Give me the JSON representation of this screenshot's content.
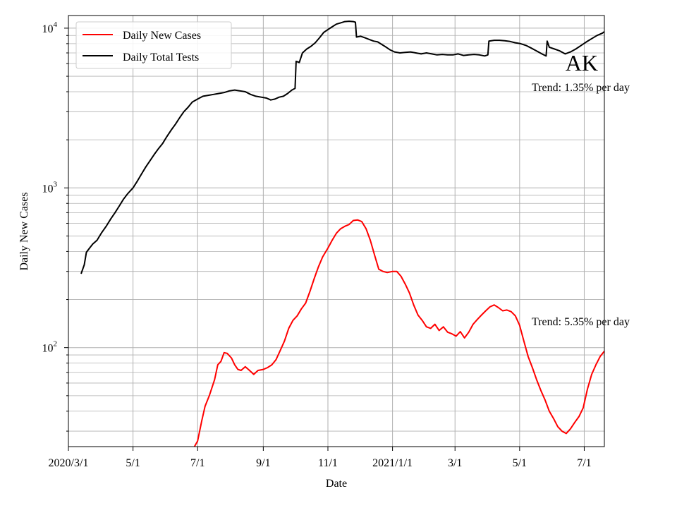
{
  "chart_data": {
    "type": "line",
    "title": "",
    "xlabel": "Date",
    "ylabel": "Daily New Cases",
    "state_label": "AK",
    "yscale": "log",
    "ylim": [
      24,
      12000
    ],
    "xlim": [
      "2020-03-01",
      "2021-07-20"
    ],
    "grid": "on (major and minor, both axes)",
    "legend_position": "upper-left",
    "x_ticks": [
      {
        "date": "2020-03-01",
        "label": "2020/3/1"
      },
      {
        "date": "2020-05-01",
        "label": "5/1"
      },
      {
        "date": "2020-07-01",
        "label": "7/1"
      },
      {
        "date": "2020-09-01",
        "label": "9/1"
      },
      {
        "date": "2020-11-01",
        "label": "11/1"
      },
      {
        "date": "2021-01-01",
        "label": "2021/1/1"
      },
      {
        "date": "2021-03-01",
        "label": "3/1"
      },
      {
        "date": "2021-05-01",
        "label": "5/1"
      },
      {
        "date": "2021-07-01",
        "label": "7/1"
      }
    ],
    "y_ticks": [
      {
        "value": 100,
        "base": "10",
        "exp": "2"
      },
      {
        "value": 1000,
        "base": "10",
        "exp": "3"
      },
      {
        "value": 10000,
        "base": "10",
        "exp": "4"
      }
    ],
    "annotations": [
      {
        "text": "Trend: 1.35% per day",
        "series": "Daily Total Tests"
      },
      {
        "text": "Trend: 5.35% per day",
        "series": "Daily New Cases"
      }
    ],
    "series": [
      {
        "name": "Daily New Cases",
        "color": "#ff0000",
        "points": [
          [
            "2020-06-28",
            24
          ],
          [
            "2020-07-01",
            26
          ],
          [
            "2020-07-05",
            35
          ],
          [
            "2020-07-08",
            43
          ],
          [
            "2020-07-12",
            50
          ],
          [
            "2020-07-17",
            63
          ],
          [
            "2020-07-20",
            78
          ],
          [
            "2020-07-23",
            82
          ],
          [
            "2020-07-26",
            93
          ],
          [
            "2020-07-29",
            92
          ],
          [
            "2020-08-02",
            86
          ],
          [
            "2020-08-05",
            78
          ],
          [
            "2020-08-08",
            73
          ],
          [
            "2020-08-11",
            72
          ],
          [
            "2020-08-15",
            76
          ],
          [
            "2020-08-19",
            72
          ],
          [
            "2020-08-23",
            68
          ],
          [
            "2020-08-27",
            72
          ],
          [
            "2020-09-01",
            73
          ],
          [
            "2020-09-05",
            75
          ],
          [
            "2020-09-09",
            78
          ],
          [
            "2020-09-13",
            84
          ],
          [
            "2020-09-17",
            96
          ],
          [
            "2020-09-21",
            110
          ],
          [
            "2020-09-25",
            132
          ],
          [
            "2020-09-29",
            148
          ],
          [
            "2020-10-03",
            158
          ],
          [
            "2020-10-07",
            175
          ],
          [
            "2020-10-11",
            190
          ],
          [
            "2020-10-15",
            225
          ],
          [
            "2020-10-19",
            270
          ],
          [
            "2020-10-23",
            320
          ],
          [
            "2020-10-27",
            370
          ],
          [
            "2020-11-01",
            420
          ],
          [
            "2020-11-05",
            470
          ],
          [
            "2020-11-09",
            520
          ],
          [
            "2020-11-13",
            555
          ],
          [
            "2020-11-17",
            575
          ],
          [
            "2020-11-21",
            590
          ],
          [
            "2020-11-25",
            625
          ],
          [
            "2020-11-29",
            630
          ],
          [
            "2020-12-03",
            615
          ],
          [
            "2020-12-07",
            555
          ],
          [
            "2020-12-11",
            470
          ],
          [
            "2020-12-15",
            380
          ],
          [
            "2020-12-19",
            310
          ],
          [
            "2020-12-23",
            300
          ],
          [
            "2020-12-27",
            295
          ],
          [
            "2021-01-01",
            300
          ],
          [
            "2021-01-05",
            300
          ],
          [
            "2021-01-09",
            280
          ],
          [
            "2021-01-13",
            250
          ],
          [
            "2021-01-17",
            220
          ],
          [
            "2021-01-21",
            185
          ],
          [
            "2021-01-25",
            160
          ],
          [
            "2021-01-29",
            148
          ],
          [
            "2021-02-02",
            135
          ],
          [
            "2021-02-06",
            132
          ],
          [
            "2021-02-10",
            140
          ],
          [
            "2021-02-14",
            128
          ],
          [
            "2021-02-18",
            135
          ],
          [
            "2021-02-22",
            125
          ],
          [
            "2021-02-26",
            122
          ],
          [
            "2021-03-02",
            118
          ],
          [
            "2021-03-06",
            126
          ],
          [
            "2021-03-10",
            115
          ],
          [
            "2021-03-14",
            125
          ],
          [
            "2021-03-18",
            140
          ],
          [
            "2021-03-22",
            150
          ],
          [
            "2021-03-26",
            160
          ],
          [
            "2021-03-30",
            170
          ],
          [
            "2021-04-03",
            180
          ],
          [
            "2021-04-07",
            185
          ],
          [
            "2021-04-11",
            178
          ],
          [
            "2021-04-15",
            170
          ],
          [
            "2021-04-19",
            172
          ],
          [
            "2021-04-23",
            168
          ],
          [
            "2021-04-27",
            158
          ],
          [
            "2021-05-01",
            138
          ],
          [
            "2021-05-05",
            110
          ],
          [
            "2021-05-09",
            88
          ],
          [
            "2021-05-13",
            75
          ],
          [
            "2021-05-17",
            63
          ],
          [
            "2021-05-21",
            54
          ],
          [
            "2021-05-25",
            47
          ],
          [
            "2021-05-29",
            40
          ],
          [
            "2021-06-02",
            36
          ],
          [
            "2021-06-06",
            32
          ],
          [
            "2021-06-10",
            30
          ],
          [
            "2021-06-14",
            29
          ],
          [
            "2021-06-18",
            31
          ],
          [
            "2021-06-22",
            34
          ],
          [
            "2021-06-26",
            37
          ],
          [
            "2021-06-30",
            42
          ],
          [
            "2021-07-04",
            55
          ],
          [
            "2021-07-08",
            68
          ],
          [
            "2021-07-12",
            78
          ],
          [
            "2021-07-16",
            88
          ],
          [
            "2021-07-20",
            95
          ]
        ]
      },
      {
        "name": "Daily Total Tests",
        "color": "#000000",
        "points": [
          [
            "2020-03-13",
            290
          ],
          [
            "2020-03-16",
            330
          ],
          [
            "2020-03-18",
            395
          ],
          [
            "2020-03-21",
            420
          ],
          [
            "2020-03-24",
            445
          ],
          [
            "2020-03-28",
            470
          ],
          [
            "2020-04-01",
            520
          ],
          [
            "2020-04-06",
            580
          ],
          [
            "2020-04-10",
            640
          ],
          [
            "2020-04-14",
            700
          ],
          [
            "2020-04-18",
            770
          ],
          [
            "2020-04-22",
            850
          ],
          [
            "2020-04-26",
            920
          ],
          [
            "2020-05-01",
            1000
          ],
          [
            "2020-05-05",
            1100
          ],
          [
            "2020-05-09",
            1220
          ],
          [
            "2020-05-13",
            1350
          ],
          [
            "2020-05-17",
            1480
          ],
          [
            "2020-05-21",
            1620
          ],
          [
            "2020-05-25",
            1760
          ],
          [
            "2020-05-29",
            1900
          ],
          [
            "2020-06-02",
            2100
          ],
          [
            "2020-06-06",
            2300
          ],
          [
            "2020-06-10",
            2500
          ],
          [
            "2020-06-14",
            2750
          ],
          [
            "2020-06-18",
            3000
          ],
          [
            "2020-06-22",
            3200
          ],
          [
            "2020-06-26",
            3450
          ],
          [
            "2020-07-01",
            3600
          ],
          [
            "2020-07-06",
            3750
          ],
          [
            "2020-07-11",
            3800
          ],
          [
            "2020-07-16",
            3850
          ],
          [
            "2020-07-21",
            3900
          ],
          [
            "2020-07-26",
            3950
          ],
          [
            "2020-07-31",
            4050
          ],
          [
            "2020-08-05",
            4100
          ],
          [
            "2020-08-10",
            4050
          ],
          [
            "2020-08-15",
            4000
          ],
          [
            "2020-08-20",
            3850
          ],
          [
            "2020-08-25",
            3750
          ],
          [
            "2020-08-30",
            3700
          ],
          [
            "2020-09-04",
            3650
          ],
          [
            "2020-09-08",
            3550
          ],
          [
            "2020-09-12",
            3600
          ],
          [
            "2020-09-16",
            3700
          ],
          [
            "2020-09-20",
            3750
          ],
          [
            "2020-09-24",
            3900
          ],
          [
            "2020-09-28",
            4100
          ],
          [
            "2020-10-01",
            4200
          ],
          [
            "2020-10-02",
            6200
          ],
          [
            "2020-10-05",
            6100
          ],
          [
            "2020-10-08",
            7000
          ],
          [
            "2020-10-12",
            7400
          ],
          [
            "2020-10-16",
            7700
          ],
          [
            "2020-10-20",
            8100
          ],
          [
            "2020-10-24",
            8700
          ],
          [
            "2020-10-28",
            9400
          ],
          [
            "2020-11-01",
            9800
          ],
          [
            "2020-11-05",
            10200
          ],
          [
            "2020-11-09",
            10600
          ],
          [
            "2020-11-13",
            10800
          ],
          [
            "2020-11-17",
            11000
          ],
          [
            "2020-11-21",
            11050
          ],
          [
            "2020-11-25",
            11000
          ],
          [
            "2020-11-27",
            10900
          ],
          [
            "2020-11-28",
            8800
          ],
          [
            "2020-12-02",
            8900
          ],
          [
            "2020-12-06",
            8700
          ],
          [
            "2020-12-10",
            8500
          ],
          [
            "2020-12-14",
            8300
          ],
          [
            "2020-12-18",
            8200
          ],
          [
            "2020-12-22",
            7900
          ],
          [
            "2020-12-26",
            7600
          ],
          [
            "2020-12-30",
            7300
          ],
          [
            "2021-01-03",
            7100
          ],
          [
            "2021-01-08",
            7000
          ],
          [
            "2021-01-13",
            7050
          ],
          [
            "2021-01-18",
            7100
          ],
          [
            "2021-01-23",
            7000
          ],
          [
            "2021-01-28",
            6900
          ],
          [
            "2021-02-02",
            7000
          ],
          [
            "2021-02-07",
            6900
          ],
          [
            "2021-02-12",
            6800
          ],
          [
            "2021-02-17",
            6850
          ],
          [
            "2021-02-22",
            6800
          ],
          [
            "2021-02-27",
            6800
          ],
          [
            "2021-03-04",
            6900
          ],
          [
            "2021-03-09",
            6750
          ],
          [
            "2021-03-14",
            6800
          ],
          [
            "2021-03-19",
            6850
          ],
          [
            "2021-03-24",
            6800
          ],
          [
            "2021-03-29",
            6700
          ],
          [
            "2021-04-01",
            6800
          ],
          [
            "2021-04-02",
            8300
          ],
          [
            "2021-04-07",
            8400
          ],
          [
            "2021-04-12",
            8400
          ],
          [
            "2021-04-17",
            8350
          ],
          [
            "2021-04-22",
            8250
          ],
          [
            "2021-04-27",
            8100
          ],
          [
            "2021-05-02",
            8000
          ],
          [
            "2021-05-07",
            7800
          ],
          [
            "2021-05-12",
            7500
          ],
          [
            "2021-05-17",
            7200
          ],
          [
            "2021-05-22",
            6900
          ],
          [
            "2021-05-26",
            6700
          ],
          [
            "2021-05-27",
            8300
          ],
          [
            "2021-05-29",
            7600
          ],
          [
            "2021-06-03",
            7400
          ],
          [
            "2021-06-08",
            7200
          ],
          [
            "2021-06-13",
            6900
          ],
          [
            "2021-06-18",
            7100
          ],
          [
            "2021-06-23",
            7400
          ],
          [
            "2021-06-28",
            7800
          ],
          [
            "2021-07-03",
            8200
          ],
          [
            "2021-07-08",
            8600
          ],
          [
            "2021-07-13",
            9000
          ],
          [
            "2021-07-18",
            9300
          ],
          [
            "2021-07-20",
            9500
          ]
        ]
      }
    ]
  }
}
